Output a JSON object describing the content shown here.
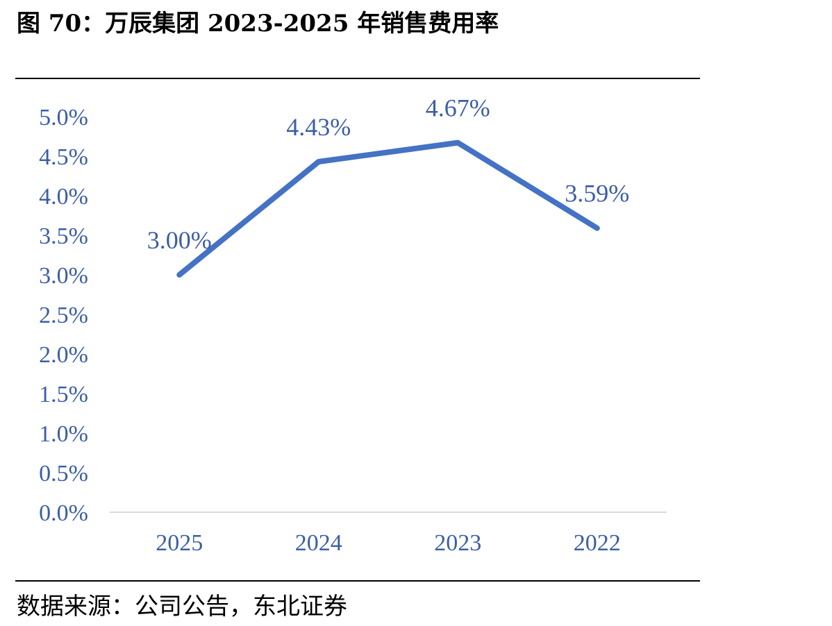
{
  "title": "图 70：万辰集团 2023-2025 年销售费用率",
  "source": "数据来源：公司公告，东北证券",
  "chart_data": {
    "type": "line",
    "categories": [
      "2025",
      "2024",
      "2023",
      "2022"
    ],
    "series": [
      {
        "values": [
          3.0,
          4.43,
          4.67,
          3.59
        ],
        "labels": [
          "3.00%",
          "4.43%",
          "4.67%",
          "3.59%"
        ]
      }
    ],
    "ylim": [
      0,
      5.0
    ],
    "yticks": [
      "0.0%",
      "0.5%",
      "1.0%",
      "1.5%",
      "2.0%",
      "2.5%",
      "3.0%",
      "3.5%",
      "4.0%",
      "4.5%",
      "5.0%"
    ],
    "line_color": "#4472c4",
    "text_color": "#3b5ea6",
    "grid": false
  }
}
